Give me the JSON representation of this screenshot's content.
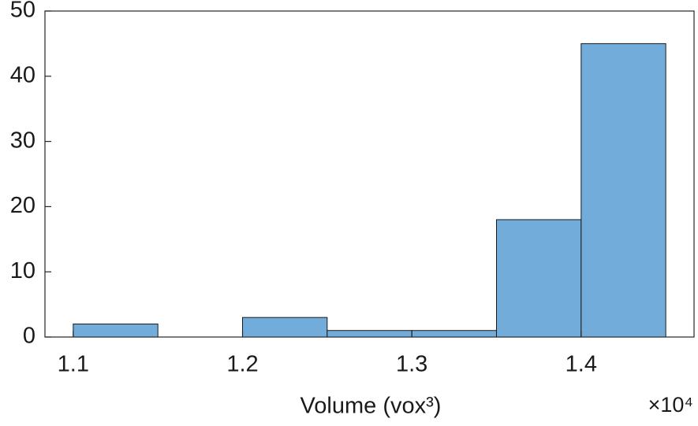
{
  "chart_data": {
    "type": "histogram",
    "xlabel": "Volume (vox³)",
    "x_exponent": "×10⁴",
    "bins": [
      1.1,
      1.15,
      1.2,
      1.25,
      1.3,
      1.35,
      1.4,
      1.45
    ],
    "values": [
      2,
      0,
      3,
      1,
      1,
      18,
      45
    ],
    "color": "#72acdb",
    "xlim": [
      1.0833,
      1.4667
    ],
    "xticks": [
      1.1,
      1.2,
      1.3,
      1.4
    ],
    "ylim": [
      0,
      50
    ],
    "yticks": [
      0,
      10,
      20,
      30,
      40,
      50
    ],
    "grid": false
  }
}
